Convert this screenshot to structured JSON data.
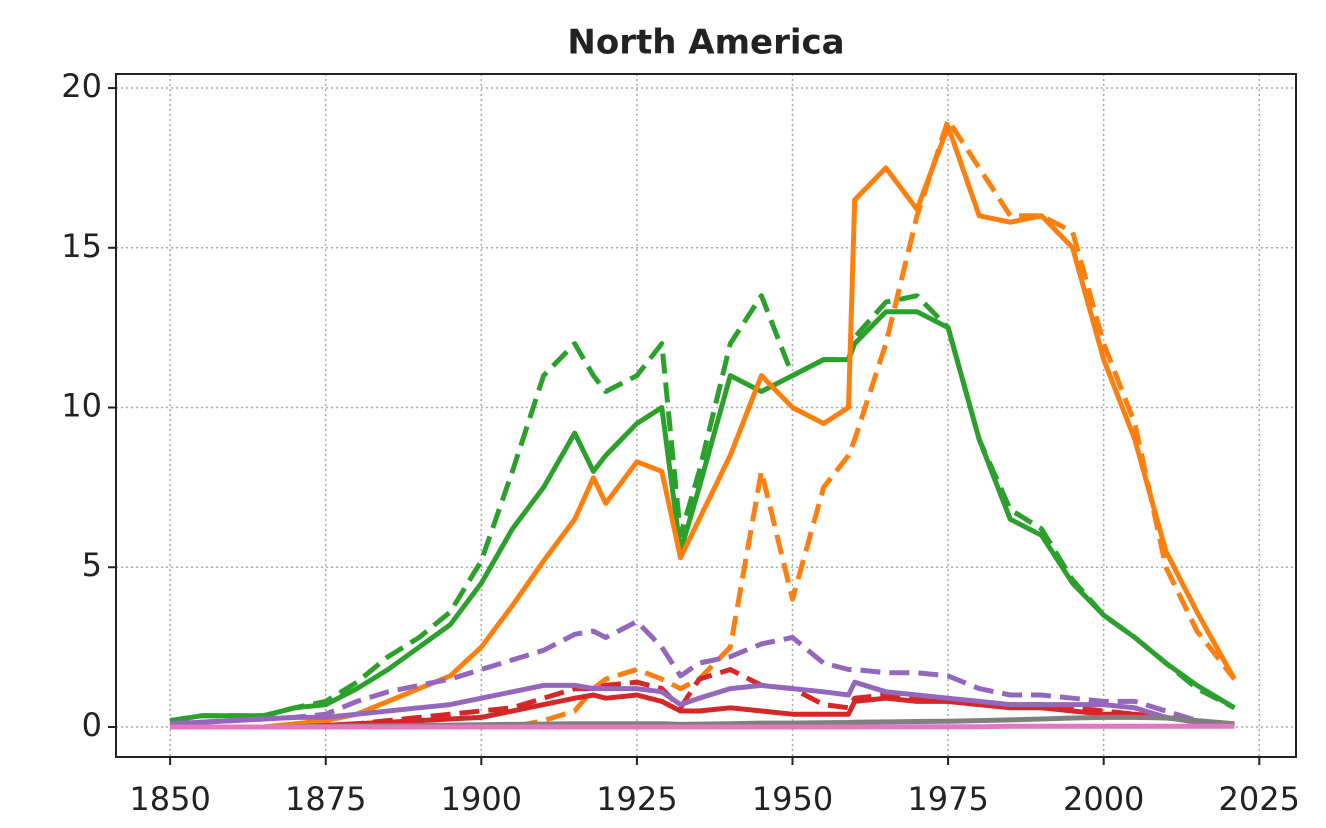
{
  "chart_data": {
    "type": "line",
    "title": "North America",
    "x": [
      1850,
      1855,
      1860,
      1865,
      1870,
      1875,
      1880,
      1885,
      1890,
      1895,
      1900,
      1905,
      1910,
      1915,
      1918,
      1920,
      1925,
      1929,
      1932,
      1935,
      1940,
      1945,
      1950,
      1955,
      1959,
      1960,
      1965,
      1970,
      1975,
      1980,
      1985,
      1990,
      1995,
      2000,
      2005,
      2010,
      2015,
      2021
    ],
    "xlim": [
      1841.3,
      2030.9
    ],
    "xticks": [
      1850,
      1875,
      1900,
      1925,
      1950,
      1975,
      2000,
      2025
    ],
    "ylim": [
      -0.94,
      20.44
    ],
    "yticks": [
      0,
      5,
      10,
      15,
      20
    ],
    "grid": true,
    "series": [
      {
        "color": "#2ca02c",
        "dash": "solid",
        "values": [
          0.2,
          0.35,
          0.35,
          0.35,
          0.6,
          0.7,
          1.2,
          1.8,
          2.5,
          3.2,
          4.5,
          6.2,
          7.5,
          9.2,
          8,
          8.5,
          9.5,
          10,
          5.5,
          7.5,
          11,
          10.5,
          11,
          11.5,
          11.5,
          12,
          13,
          13,
          12.5,
          9,
          6.5,
          6,
          4.5,
          3.5,
          2.8,
          2,
          1.3,
          0.6
        ]
      },
      {
        "color": "#2ca02c",
        "dash": "dashed",
        "values": [
          0.2,
          0.35,
          0.35,
          0.35,
          0.6,
          0.8,
          1.4,
          2.2,
          2.8,
          3.6,
          5.2,
          8,
          11,
          12,
          11,
          10.5,
          11,
          12,
          6,
          8,
          12,
          13.5,
          11,
          11.5,
          11.5,
          12.2,
          13.3,
          13.5,
          12.5,
          9,
          6.8,
          6.2,
          4.6,
          3.5,
          2.8,
          2,
          1.2,
          0.6
        ]
      },
      {
        "color": "#ff7f0e",
        "dash": "solid",
        "values": [
          0,
          0,
          0,
          0,
          0.1,
          0.2,
          0.4,
          0.8,
          1.2,
          1.6,
          2.5,
          3.8,
          5.2,
          6.5,
          7.8,
          7,
          8.3,
          8,
          5.3,
          6.5,
          8.5,
          11,
          10,
          9.5,
          10,
          16.5,
          17.5,
          16.2,
          18.8,
          16,
          15.8,
          16,
          15,
          11.5,
          9,
          5.5,
          3.6,
          1.5
        ]
      },
      {
        "color": "#ff7f0e",
        "dash": "dashed",
        "values": [
          0,
          0,
          0,
          0,
          0,
          0,
          0,
          0,
          0,
          0,
          0,
          0,
          0.2,
          0.5,
          1.2,
          1.5,
          1.8,
          1.5,
          1.2,
          1.5,
          2.5,
          8,
          4,
          7.5,
          8.5,
          9,
          12,
          16,
          19,
          17.5,
          16,
          16,
          15.5,
          12,
          9.5,
          5,
          3,
          1.5
        ]
      },
      {
        "color": "#d62728",
        "dash": "solid",
        "values": [
          0,
          0,
          0,
          0,
          0,
          0.05,
          0.1,
          0.15,
          0.2,
          0.25,
          0.3,
          0.5,
          0.7,
          0.9,
          1,
          0.9,
          1,
          0.8,
          0.5,
          0.5,
          0.6,
          0.5,
          0.4,
          0.4,
          0.4,
          0.8,
          0.9,
          0.8,
          0.8,
          0.7,
          0.6,
          0.6,
          0.5,
          0.4,
          0.4,
          0.3,
          0.15,
          0.05
        ]
      },
      {
        "color": "#d62728",
        "dash": "dashed",
        "values": [
          0,
          0,
          0,
          0,
          0,
          0.05,
          0.1,
          0.2,
          0.3,
          0.4,
          0.5,
          0.6,
          0.9,
          1.2,
          1.2,
          1.3,
          1.4,
          1.2,
          0.6,
          1.5,
          1.8,
          1.3,
          1.2,
          0.7,
          0.6,
          0.9,
          1,
          0.9,
          0.8,
          0.7,
          0.7,
          0.7,
          0.6,
          0.5,
          0.4,
          0.3,
          0.15,
          0.05
        ]
      },
      {
        "color": "#9467bd",
        "dash": "solid",
        "values": [
          0.1,
          0.15,
          0.2,
          0.25,
          0.3,
          0.3,
          0.4,
          0.5,
          0.6,
          0.7,
          0.9,
          1.1,
          1.3,
          1.3,
          1.2,
          1.2,
          1.2,
          1.1,
          0.7,
          0.9,
          1.2,
          1.3,
          1.2,
          1.1,
          1,
          1.4,
          1.1,
          1,
          0.9,
          0.8,
          0.7,
          0.7,
          0.7,
          0.7,
          0.6,
          0.3,
          0.15,
          0.05
        ]
      },
      {
        "color": "#9467bd",
        "dash": "dashed",
        "values": [
          0.1,
          0.15,
          0.2,
          0.25,
          0.3,
          0.4,
          0.8,
          1.1,
          1.3,
          1.5,
          1.8,
          2.1,
          2.4,
          2.9,
          3,
          2.8,
          3.3,
          2.5,
          1.6,
          2,
          2.2,
          2.6,
          2.8,
          2,
          1.8,
          1.8,
          1.7,
          1.7,
          1.6,
          1.2,
          1,
          1,
          0.9,
          0.8,
          0.8,
          0.5,
          0.2,
          0.05
        ]
      },
      {
        "color": "#7f7f7f",
        "dash": "solid",
        "values": [
          0,
          0,
          0,
          0,
          0.01,
          0.02,
          0.03,
          0.04,
          0.05,
          0.06,
          0.07,
          0.08,
          0.09,
          0.1,
          0.1,
          0.1,
          0.1,
          0.1,
          0.08,
          0.09,
          0.1,
          0.12,
          0.12,
          0.13,
          0.14,
          0.15,
          0.16,
          0.17,
          0.18,
          0.2,
          0.22,
          0.25,
          0.28,
          0.3,
          0.3,
          0.28,
          0.2,
          0.1
        ]
      },
      {
        "color": "#e377c2",
        "dash": "solid",
        "values": [
          0,
          0,
          0,
          0,
          0,
          0,
          0,
          0,
          0,
          0,
          0,
          0,
          0,
          0,
          0,
          0,
          0,
          0,
          0,
          0,
          0,
          0,
          0,
          0,
          0,
          0,
          0.01,
          0.01,
          0.01,
          0.01,
          0.02,
          0.02,
          0.02,
          0.02,
          0.02,
          0.02,
          0.02,
          0.02
        ]
      }
    ]
  }
}
